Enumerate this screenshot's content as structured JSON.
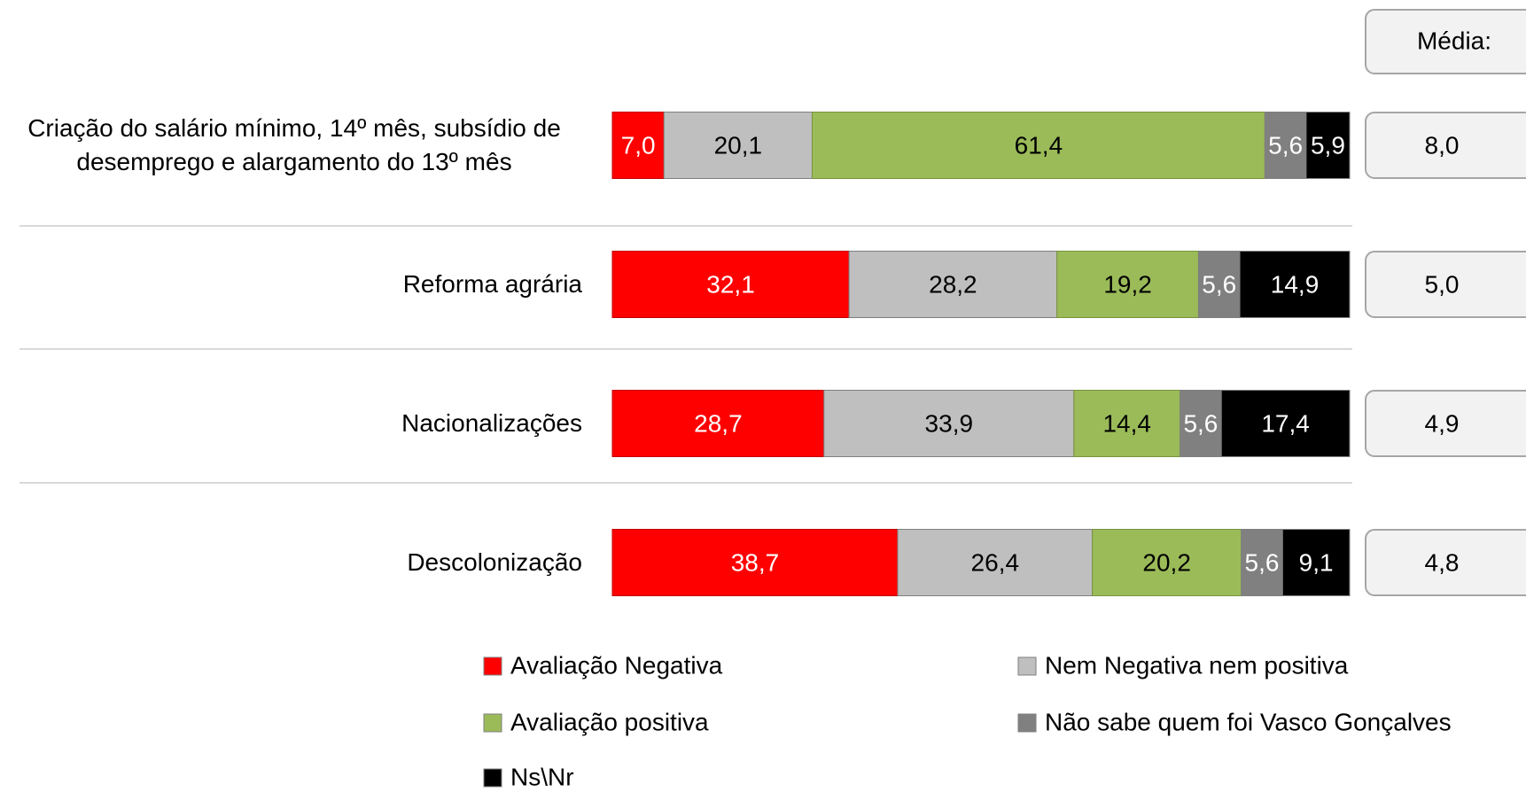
{
  "chart_data": {
    "type": "stacked-bar-horizontal",
    "categories": [
      "Criação do salário mínimo, 14º mês, subsídio de desemprego e alargamento do 13º mês",
      "Reforma agrária",
      "Nacionalizações",
      "Descolonização"
    ],
    "xlim": [
      0,
      100
    ],
    "series": [
      {
        "name": "Avaliação Negativa",
        "color": "#ff0000",
        "values": [
          7.0,
          32.1,
          28.7,
          38.7
        ],
        "value_labels": [
          "7,0",
          "32,1",
          "28,7",
          "38,7"
        ]
      },
      {
        "name": "Nem Negativa nem positiva",
        "color": "#bfbfbf",
        "values": [
          20.1,
          28.2,
          33.9,
          26.4
        ],
        "value_labels": [
          "20,1",
          "28,2",
          "33,9",
          "26,4"
        ]
      },
      {
        "name": "Avaliação positiva",
        "color": "#9bbb59",
        "values": [
          61.4,
          19.2,
          14.4,
          20.2
        ],
        "value_labels": [
          "61,4",
          "19,2",
          "14,4",
          "20,2"
        ]
      },
      {
        "name": "Não sabe quem foi Vasco Gonçalves",
        "color": "#808080",
        "values": [
          5.6,
          5.6,
          5.6,
          5.6
        ],
        "value_labels": [
          "5,6",
          "5,6",
          "5,6",
          "5,6"
        ]
      },
      {
        "name": "Ns\\Nr",
        "color": "#000000",
        "values": [
          5.9,
          14.9,
          17.4,
          9.1
        ],
        "value_labels": [
          "5,9",
          "14,9",
          "17,4",
          "9,1"
        ]
      }
    ],
    "media": {
      "label": "Média:",
      "values": [
        8.0,
        5.0,
        4.9,
        4.8
      ],
      "value_labels": [
        "8,0",
        "5,0",
        "4,9",
        "4,8"
      ]
    }
  }
}
